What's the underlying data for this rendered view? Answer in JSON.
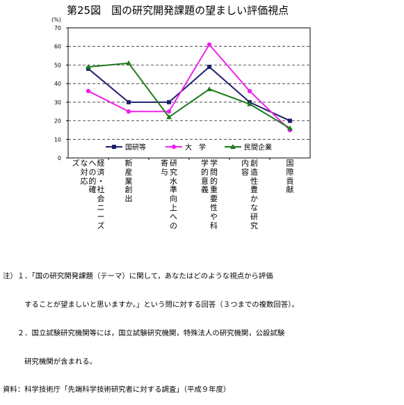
{
  "chart_data": {
    "type": "line",
    "title": "第25図　国の研究開発課題の望ましい評価視点",
    "ylabel": "(%)",
    "ylim": [
      0,
      70
    ],
    "yticks": [
      "0",
      "10",
      "20",
      "30",
      "40",
      "50",
      "60",
      "70"
    ],
    "grid": "horizontal dashed",
    "legend_position": "bottom inside plot",
    "categories": [
      "経済社会ニーズへの対応の的確さ",
      "新産業創出",
      "研究水準向上への寄与",
      "学問的重要性や科学的意義",
      "創造性豊かな研究内容",
      "国際貢献"
    ],
    "category_columns": [
      [
        "経済・社会ニーズ",
        "への的確",
        "な対応",
        "ズ"
      ],
      [
        "新産業創出"
      ],
      [
        "研究水準向上への",
        "寄与"
      ],
      [
        "学問的重要性や科",
        "学的意義"
      ],
      [
        "創造性豊かな研究",
        "内容"
      ],
      [
        "国際貢献"
      ]
    ],
    "series": [
      {
        "name": "国研等",
        "color": "#1f1f6e",
        "marker": "square",
        "values": [
          48,
          30,
          30,
          49,
          30,
          20
        ]
      },
      {
        "name": "大　学",
        "color": "#ee22ee",
        "marker": "circle",
        "values": [
          36,
          25,
          25,
          61,
          36,
          15
        ]
      },
      {
        "name": "民間企業",
        "color": "#1e7a1e",
        "marker": "triangle",
        "values": [
          49,
          51,
          22,
          37,
          29,
          16
        ]
      }
    ]
  },
  "notes": [
    "注）１．「国の研究開発課題（テーマ）に関して，あなたはどのような視点から評価",
    "　　　することが望ましいと思いますか。」という問に対する回答（３つまでの複数回答）。",
    "　　２．国立試験研究機関等には，国立試験研究機関，特殊法人の研究機関，公設試験",
    "　　　研究機関が含まれる。",
    "資料：科学技術庁「先端科学技術研究者に対する調査」（平成９年度）"
  ]
}
